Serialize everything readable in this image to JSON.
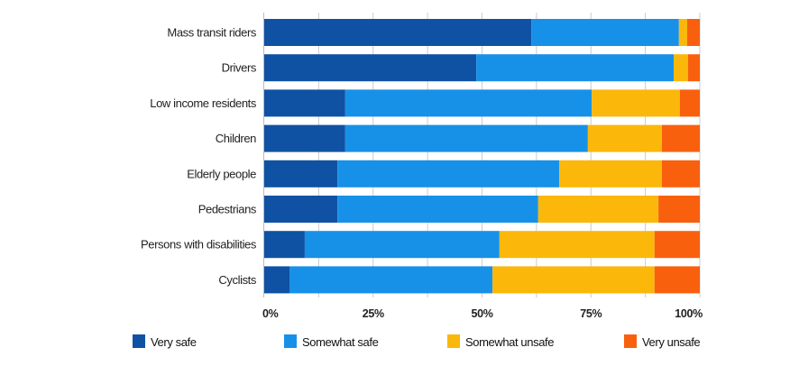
{
  "chart_data": {
    "type": "bar",
    "orientation": "horizontal",
    "stacked": "percent",
    "title": "",
    "xlabel": "",
    "ylabel": "",
    "xlim": [
      0,
      100
    ],
    "grid": true,
    "legend_position": "bottom",
    "categories": [
      "Mass transit riders",
      "Drivers",
      "Low income residents",
      "Children",
      "Elderly people",
      "Pedestrians",
      "Persons with disabilities",
      "Cyclists"
    ],
    "x_ticks": [
      0,
      25,
      50,
      75,
      100
    ],
    "x_tick_labels": [
      "0%",
      "25%",
      "50%",
      "75%",
      "100%"
    ],
    "series": [
      {
        "name": "Very safe",
        "color": "#0f52a3",
        "values": [
          61.3,
          48.7,
          18.6,
          18.6,
          16.8,
          16.8,
          9.3,
          5.8
        ]
      },
      {
        "name": "Somewhat safe",
        "color": "#1791e8",
        "values": [
          33.9,
          45.3,
          56.6,
          55.7,
          50.9,
          46.1,
          44.7,
          46.6
        ]
      },
      {
        "name": "Somewhat unsafe",
        "color": "#fbb80b",
        "values": [
          1.9,
          3.3,
          20.2,
          17.0,
          23.6,
          27.6,
          35.6,
          37.2
        ]
      },
      {
        "name": "Very unsafe",
        "color": "#f9600e",
        "values": [
          2.9,
          2.7,
          4.6,
          8.7,
          8.7,
          9.5,
          10.4,
          10.4
        ]
      }
    ]
  }
}
